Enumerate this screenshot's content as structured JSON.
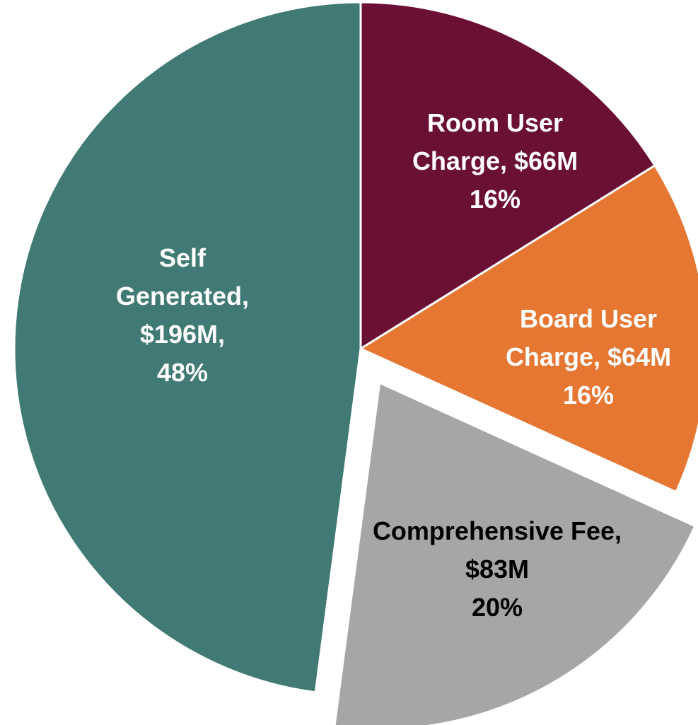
{
  "chart_data": {
    "type": "pie",
    "categories": [
      "Room User Charge,",
      "Board User Charge,",
      "Comprehensive Fee,",
      "Self Generated,"
    ],
    "values": [
      66,
      64,
      83,
      196
    ],
    "value_labels": [
      "$66M",
      "$64M",
      "$83M",
      "$196M,"
    ],
    "percents": [
      16,
      16,
      20,
      48
    ],
    "percent_labels": [
      "16%",
      "16%",
      "20%",
      "48%"
    ],
    "colors": [
      "#6b1035",
      "#e57733",
      "#a6a6a6",
      "#417a75"
    ],
    "explode": [
      false,
      false,
      true,
      false
    ]
  }
}
